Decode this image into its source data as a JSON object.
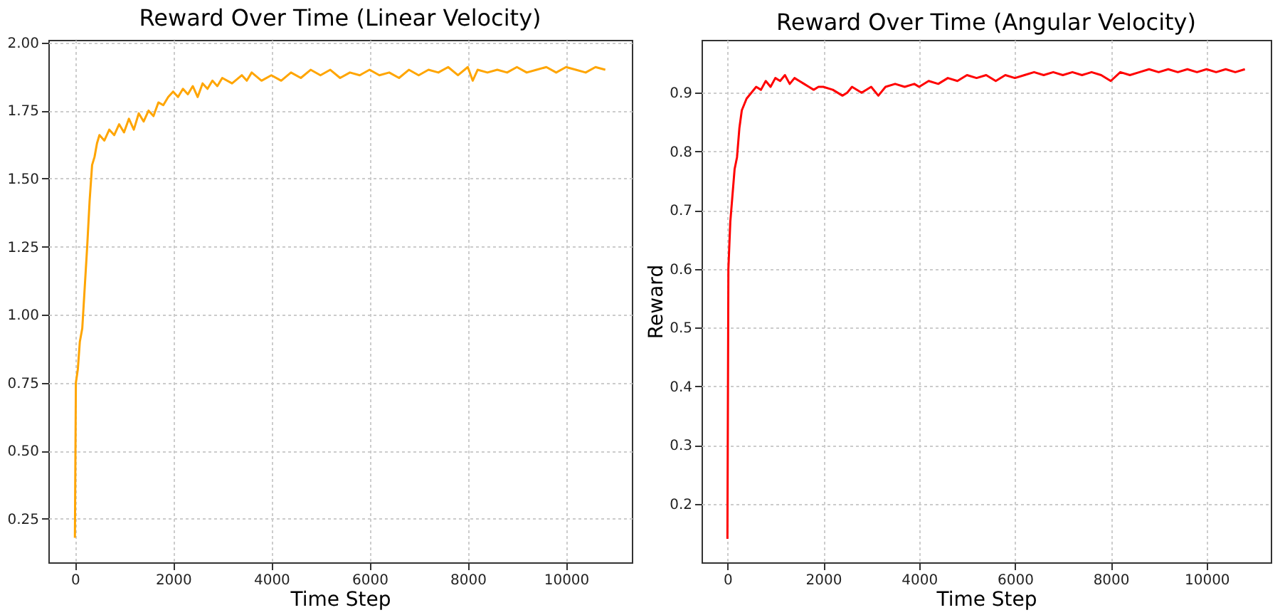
{
  "chart_data": [
    {
      "type": "line",
      "title": "Reward Over Time (Linear Velocity)",
      "xlabel": "Time Step",
      "xlim": [
        -540,
        11340
      ],
      "xticks": [
        0,
        2000,
        4000,
        6000,
        8000,
        10000
      ],
      "ylim": [
        0.09,
        2.01
      ],
      "yticks": [
        {
          "value": 0.25,
          "label": "0.25"
        },
        {
          "value": 0.5,
          "label": "0.50"
        },
        {
          "value": 0.75,
          "label": "0.75"
        },
        {
          "value": 1,
          "label": "1.00"
        },
        {
          "value": 1.25,
          "label": "1.25"
        },
        {
          "value": 1.5,
          "label": "1.50"
        },
        {
          "value": 1.75,
          "label": "1.75"
        },
        {
          "value": 2,
          "label": "2.00"
        }
      ],
      "grid": true,
      "x": [
        0,
        20,
        60,
        100,
        150,
        200,
        250,
        300,
        350,
        400,
        450,
        500,
        600,
        700,
        800,
        900,
        1000,
        1100,
        1200,
        1300,
        1400,
        1500,
        1600,
        1700,
        1800,
        1900,
        2000,
        2100,
        2200,
        2300,
        2400,
        2500,
        2600,
        2700,
        2800,
        2900,
        3000,
        3200,
        3400,
        3500,
        3600,
        3800,
        4000,
        4200,
        4400,
        4600,
        4800,
        5000,
        5200,
        5400,
        5600,
        5800,
        6000,
        6200,
        6400,
        6600,
        6800,
        7000,
        7200,
        7400,
        7600,
        7800,
        8000,
        8100,
        8200,
        8400,
        8600,
        8800,
        9000,
        9200,
        9400,
        9600,
        9800,
        10000,
        10200,
        10400,
        10600,
        10800
      ],
      "series": [
        {
          "color": "#ffa500",
          "values": [
            0.18,
            0.75,
            0.8,
            0.9,
            0.95,
            1.1,
            1.25,
            1.42,
            1.55,
            1.58,
            1.63,
            1.66,
            1.64,
            1.68,
            1.66,
            1.7,
            1.67,
            1.72,
            1.68,
            1.74,
            1.71,
            1.75,
            1.73,
            1.78,
            1.77,
            1.8,
            1.82,
            1.8,
            1.83,
            1.81,
            1.84,
            1.8,
            1.85,
            1.83,
            1.86,
            1.84,
            1.87,
            1.85,
            1.88,
            1.86,
            1.89,
            1.86,
            1.88,
            1.86,
            1.89,
            1.87,
            1.9,
            1.88,
            1.9,
            1.87,
            1.89,
            1.88,
            1.9,
            1.88,
            1.89,
            1.87,
            1.9,
            1.88,
            1.9,
            1.89,
            1.91,
            1.88,
            1.91,
            1.86,
            1.9,
            1.89,
            1.9,
            1.89,
            1.91,
            1.89,
            1.9,
            1.91,
            1.89,
            1.91,
            1.9,
            1.89,
            1.91,
            1.9
          ]
        }
      ]
    },
    {
      "type": "line",
      "title": "Reward Over Time (Angular Velocity)",
      "xlabel": "Time Step",
      "ylabel": "Reward",
      "xlim": [
        -540,
        11340
      ],
      "xticks": [
        0,
        2000,
        4000,
        6000,
        8000,
        10000
      ],
      "ylim": [
        0.1,
        0.99
      ],
      "yticks": [
        0.2,
        0.3,
        0.4,
        0.5,
        0.6,
        0.7,
        0.8,
        0.9
      ],
      "grid": true,
      "x": [
        0,
        20,
        60,
        100,
        150,
        200,
        250,
        300,
        350,
        400,
        500,
        600,
        700,
        800,
        900,
        1000,
        1100,
        1200,
        1300,
        1400,
        1500,
        1600,
        1700,
        1800,
        1900,
        2000,
        2200,
        2400,
        2500,
        2600,
        2800,
        3000,
        3150,
        3300,
        3500,
        3700,
        3900,
        4000,
        4200,
        4400,
        4600,
        4800,
        5000,
        5200,
        5400,
        5600,
        5800,
        6000,
        6200,
        6400,
        6600,
        6800,
        7000,
        7200,
        7400,
        7600,
        7800,
        8000,
        8200,
        8400,
        8600,
        8800,
        9000,
        9200,
        9400,
        9600,
        9800,
        10000,
        10200,
        10400,
        10600,
        10800
      ],
      "series": [
        {
          "color": "#ff0000",
          "values": [
            0.14,
            0.6,
            0.68,
            0.72,
            0.77,
            0.79,
            0.84,
            0.87,
            0.88,
            0.89,
            0.9,
            0.91,
            0.905,
            0.92,
            0.91,
            0.925,
            0.92,
            0.93,
            0.915,
            0.925,
            0.92,
            0.915,
            0.91,
            0.905,
            0.91,
            0.91,
            0.905,
            0.895,
            0.9,
            0.91,
            0.9,
            0.91,
            0.895,
            0.91,
            0.915,
            0.91,
            0.915,
            0.91,
            0.92,
            0.915,
            0.925,
            0.92,
            0.93,
            0.925,
            0.93,
            0.92,
            0.93,
            0.925,
            0.93,
            0.935,
            0.93,
            0.935,
            0.93,
            0.935,
            0.93,
            0.935,
            0.93,
            0.92,
            0.935,
            0.93,
            0.935,
            0.94,
            0.935,
            0.94,
            0.935,
            0.94,
            0.935,
            0.94,
            0.935,
            0.94,
            0.935,
            0.94
          ]
        }
      ]
    }
  ]
}
